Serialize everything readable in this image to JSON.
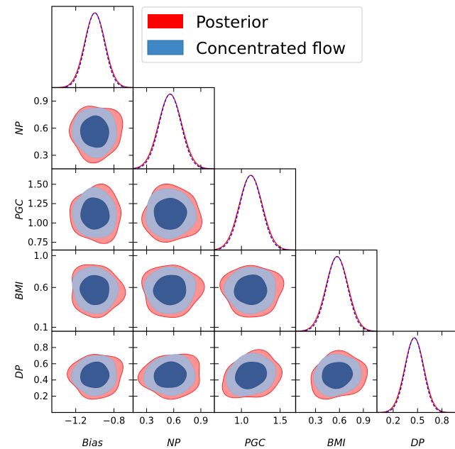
{
  "chart_data": {
    "type": "corner",
    "parameters": [
      "Bias",
      "NP",
      "PGC",
      "BMI",
      "DP"
    ],
    "axes": {
      "Bias": {
        "range": [
          -1.45,
          -0.6
        ],
        "ticks": [
          -1.2,
          -0.8
        ],
        "tick_labels": [
          "−1.2",
          "−0.8"
        ],
        "mean": -1.0,
        "std": 0.1
      },
      "NP": {
        "range": [
          0.15,
          1.05
        ],
        "ticks": [
          0.3,
          0.6,
          0.9
        ],
        "tick_labels": [
          "0.3",
          "0.6",
          "0.9"
        ],
        "mean": 0.56,
        "std": 0.12
      },
      "PGC": {
        "range": [
          0.65,
          1.7
        ],
        "ticks": [
          0.75,
          1.0,
          1.25,
          1.5
        ],
        "tick_labels": [
          "0.75",
          "1.00",
          "1.25",
          "1.50"
        ],
        "x_ticks": [
          1.0,
          1.5
        ],
        "x_tick_labels": [
          "1.0",
          "1.5"
        ],
        "mean": 1.12,
        "std": 0.14
      },
      "BMI": {
        "range": [
          0.05,
          1.07
        ],
        "ticks": [
          0.1,
          0.6,
          1.0
        ],
        "tick_labels": [
          "0.1",
          "0.6",
          "1.0"
        ],
        "x_ticks": [
          0.3,
          0.6,
          0.9
        ],
        "x_tick_labels": [
          "0.3",
          "0.6",
          "0.9"
        ],
        "mean": 0.57,
        "std": 0.13
      },
      "DP": {
        "range": [
          0.0,
          1.0
        ],
        "ticks": [
          0.2,
          0.4,
          0.6,
          0.8
        ],
        "tick_labels": [
          "0.2",
          "0.4",
          "0.6",
          "0.8"
        ],
        "x_ticks": [
          0.2,
          0.5,
          0.8
        ],
        "x_tick_labels": [
          "0.2",
          "0.5",
          "0.8"
        ],
        "mean": 0.46,
        "std": 0.11
      }
    },
    "series": [
      {
        "name": "Posterior",
        "color": "#ff0000",
        "fill": "#ff8080",
        "style": "solid"
      },
      {
        "name": "Concentrated flow",
        "color": "#0000ff",
        "fill_outer": "#aab4d2",
        "fill_inner": "#3a5a94",
        "legend_fill": "#3f88c5",
        "style": "dashed"
      }
    ],
    "legend_position": "top-right"
  }
}
